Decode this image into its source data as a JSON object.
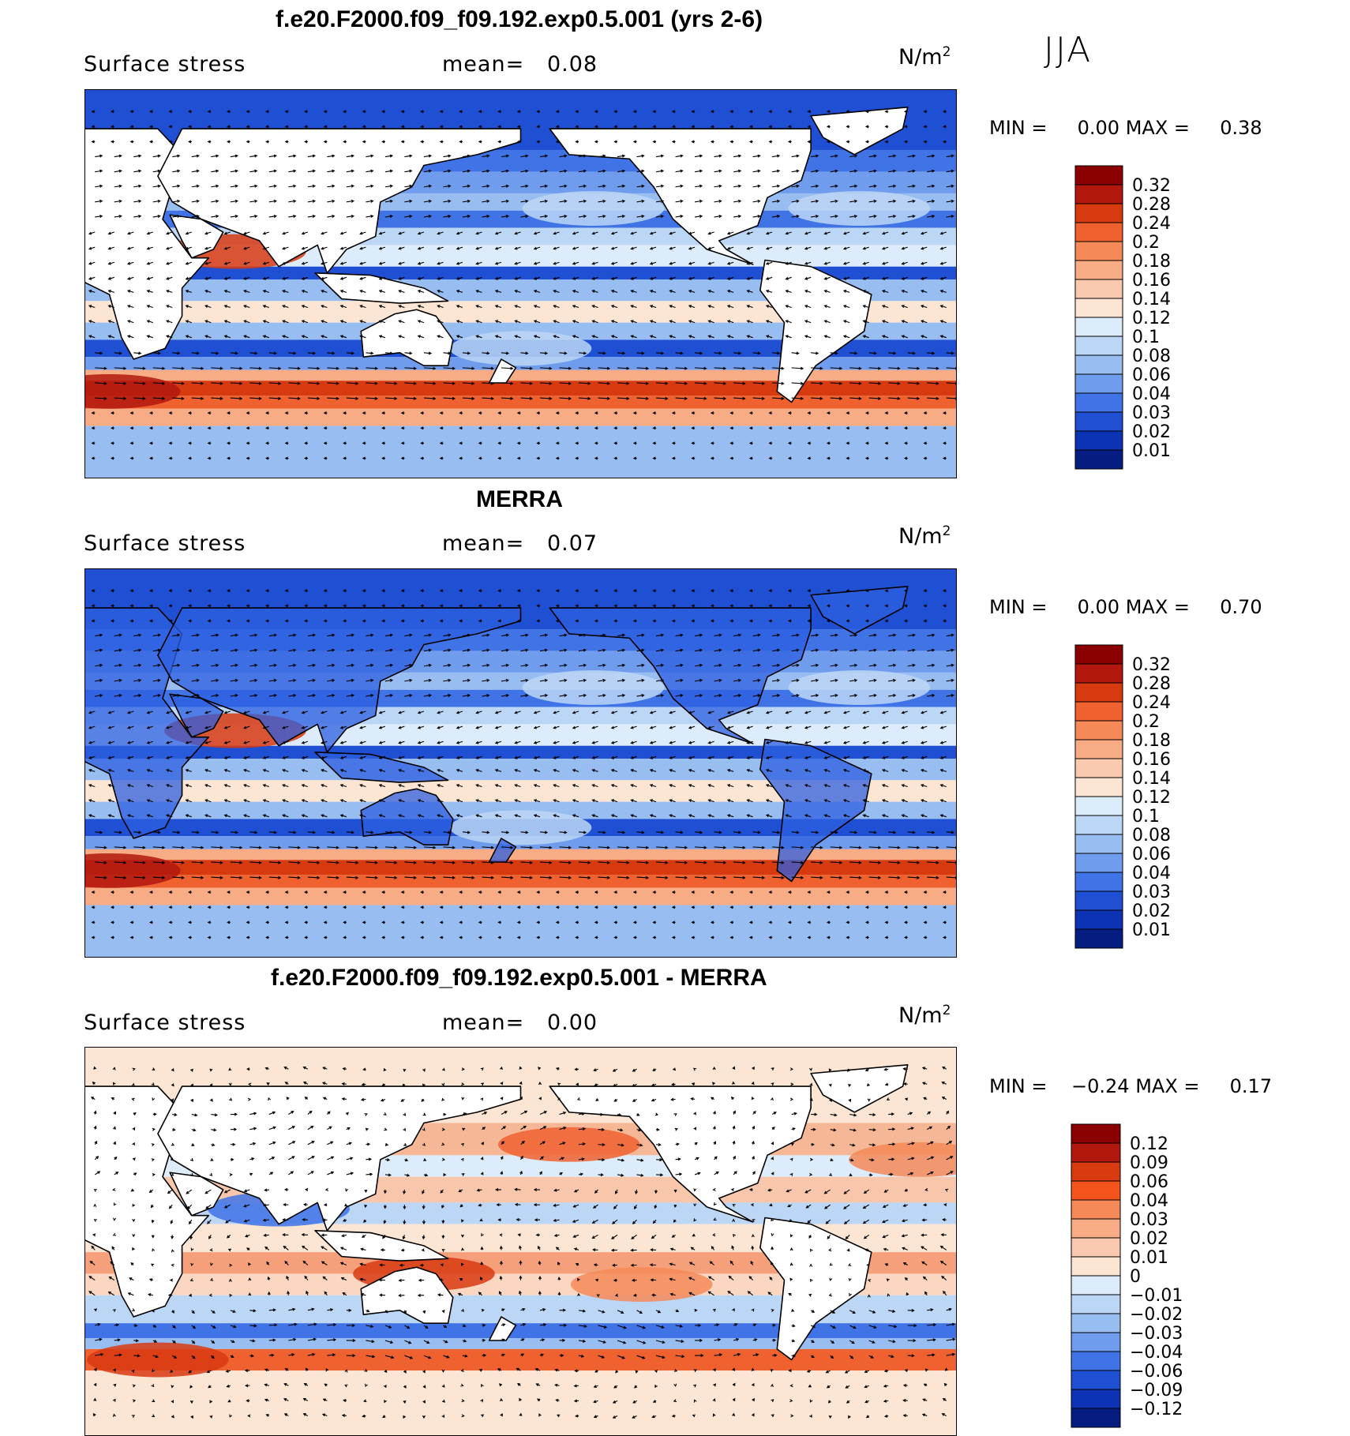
{
  "season": "JJA",
  "panels": [
    {
      "id": "model",
      "title": "f.e20.F2000.f09_f09.192.exp0.5.001 (yrs 2-6)",
      "variable": "Surface stress",
      "mean_label": "mean=",
      "mean_value": "0.08",
      "units_base": "N/m",
      "units_exp": "2",
      "min_label": "MIN =",
      "min_value": "0.00",
      "max_label": "MAX =",
      "max_value": "0.38",
      "palette": "abs"
    },
    {
      "id": "obs",
      "title": "MERRA",
      "variable": "Surface stress",
      "mean_label": "mean=",
      "mean_value": "0.07",
      "units_base": "N/m",
      "units_exp": "2",
      "min_label": "MIN =",
      "min_value": "0.00",
      "max_label": "MAX =",
      "max_value": "0.70",
      "palette": "abs"
    },
    {
      "id": "diff",
      "title": "f.e20.F2000.f09_f09.192.exp0.5.001 - MERRA",
      "variable": "Surface stress",
      "mean_label": "mean=",
      "mean_value": "0.00",
      "units_base": "N/m",
      "units_exp": "2",
      "min_label": "MIN =",
      "min_value": "−0.24",
      "max_label": "MAX =",
      "max_value": "0.17",
      "palette": "diff"
    }
  ],
  "colorbars": {
    "abs": {
      "labels": [
        "0.32",
        "0.28",
        "0.24",
        "0.2",
        "0.18",
        "0.16",
        "0.14",
        "0.12",
        "0.1",
        "0.08",
        "0.06",
        "0.04",
        "0.03",
        "0.02",
        "0.01"
      ],
      "colors": [
        "#8b0000",
        "#b2180e",
        "#d83a10",
        "#ef6230",
        "#f58a58",
        "#f7ac86",
        "#facab0",
        "#fde5d3",
        "#dcecfa",
        "#bcd6f6",
        "#97bdf1",
        "#6f9cec",
        "#3f73e6",
        "#1f4fd2",
        "#0c33b4",
        "#071c80"
      ]
    },
    "diff": {
      "labels": [
        "0.12",
        "0.09",
        "0.06",
        "0.04",
        "0.03",
        "0.02",
        "0.01",
        "0",
        "−0.01",
        "−0.02",
        "−0.03",
        "−0.04",
        "−0.06",
        "−0.09",
        "−0.12"
      ],
      "colors": [
        "#8b0000",
        "#b2180e",
        "#d83a10",
        "#f4541c",
        "#f58a58",
        "#f7ac86",
        "#facab0",
        "#fde5d3",
        "#dcecfa",
        "#bcd6f6",
        "#97bdf1",
        "#6f9cec",
        "#3f73e6",
        "#1f4fd2",
        "#0c33b4",
        "#071c80"
      ]
    }
  },
  "colors": {
    "ocean_abs_base": "#2d5fe0",
    "land": "#ffffff",
    "diff_base": "#fbe3d2"
  }
}
